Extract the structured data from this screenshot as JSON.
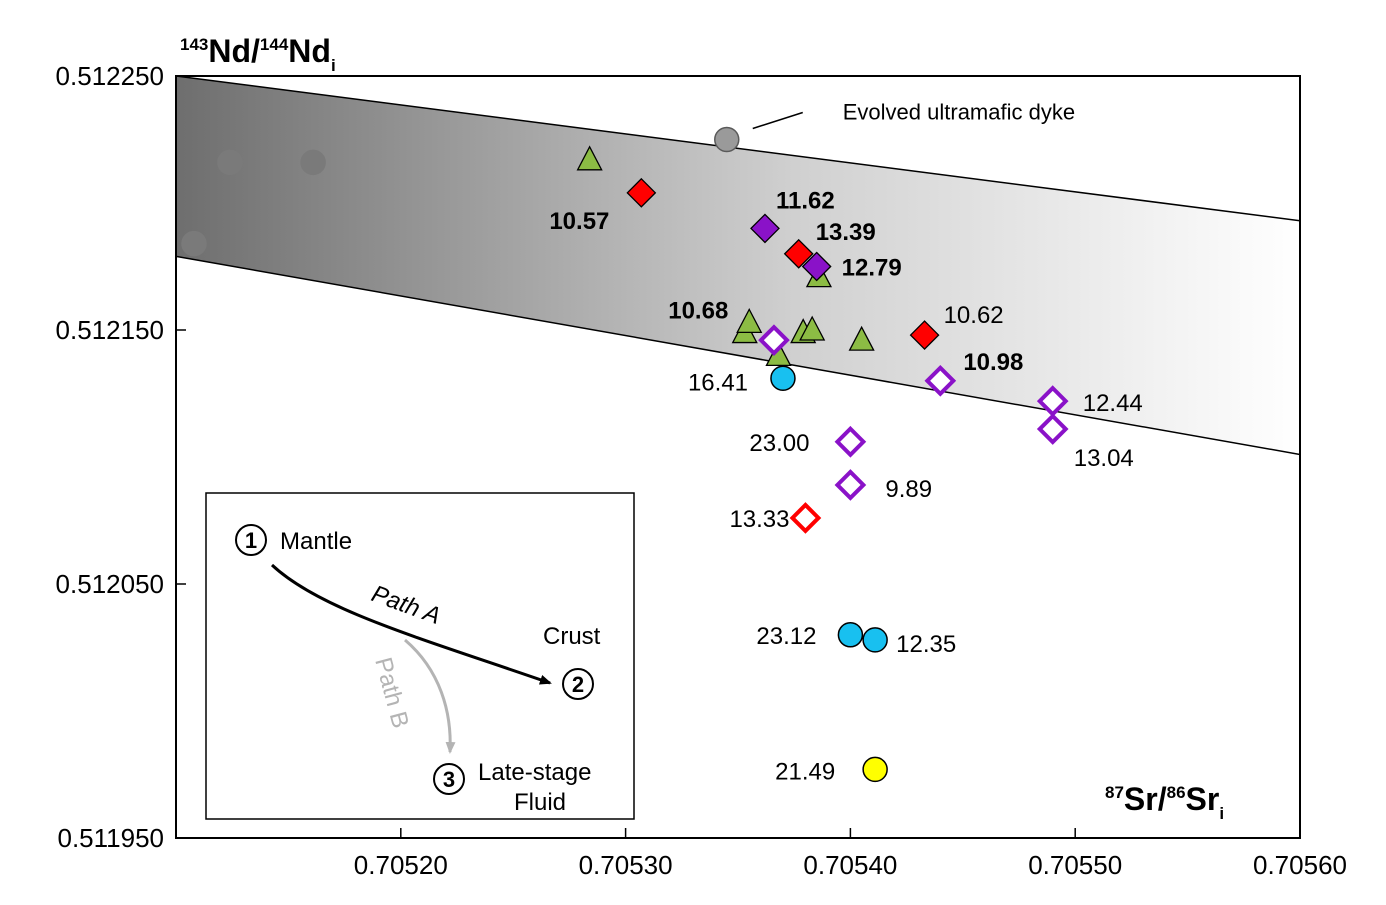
{
  "chart_data": {
    "type": "scatter",
    "y_axis_title": {
      "sup1": "143",
      "main1": "Nd/",
      "sup2": "144",
      "main2": "Nd",
      "sub": "i"
    },
    "x_axis_title": {
      "sup1": "87",
      "main1": "Sr/",
      "sup2": "86",
      "main2": "Sr",
      "sub": "i"
    },
    "xlim": [
      0.7051,
      0.7056
    ],
    "ylim": [
      0.51195,
      0.51225
    ],
    "x_ticks": [
      "0.70520",
      "0.70530",
      "0.70540",
      "0.70550",
      "0.70560"
    ],
    "y_ticks": [
      "0.511950",
      "0.512050",
      "0.512150",
      "0.512250"
    ],
    "grid": false,
    "band": {
      "upper": [
        [
          0.7051,
          0.51225
        ],
        [
          0.7056,
          0.512193
        ]
      ],
      "lower": [
        [
          0.7051,
          0.512179
        ],
        [
          0.7056,
          0.512101
        ]
      ],
      "colors": [
        "#6e6e6e",
        "#ffffff"
      ]
    },
    "series": [
      {
        "marker": "circle",
        "fill": "#7a7a7a",
        "stroke": "#7a7a7a",
        "points": [
          {
            "x": 0.705108,
            "y": 0.512184,
            "label": ""
          },
          {
            "x": 0.705124,
            "y": 0.512216,
            "label": ""
          },
          {
            "x": 0.705161,
            "y": 0.512216,
            "label": ""
          }
        ]
      },
      {
        "marker": "circle",
        "fill": "#9a9a9a",
        "stroke": "#5a5a5a",
        "points": [
          {
            "x": 0.705345,
            "y": 0.512225,
            "label": ""
          }
        ]
      },
      {
        "marker": "triangle",
        "fill": "#8cbc44",
        "stroke": "#000000",
        "points": [
          {
            "x": 0.705284,
            "y": 0.512217,
            "label": ""
          },
          {
            "x": 0.705353,
            "y": 0.512149,
            "label": ""
          },
          {
            "x": 0.705355,
            "y": 0.512153,
            "label": "10.68"
          },
          {
            "x": 0.705368,
            "y": 0.51214,
            "label": ""
          },
          {
            "x": 0.705379,
            "y": 0.512149,
            "label": ""
          },
          {
            "x": 0.705383,
            "y": 0.51215,
            "label": ""
          },
          {
            "x": 0.705386,
            "y": 0.512171,
            "label": ""
          },
          {
            "x": 0.705405,
            "y": 0.512146,
            "label": ""
          }
        ]
      },
      {
        "marker": "diamond",
        "fill": "#ff0000",
        "stroke": "#000000",
        "points": [
          {
            "x": 0.705307,
            "y": 0.512204,
            "label": "10.57"
          },
          {
            "x": 0.705377,
            "y": 0.51218,
            "label": "13.39"
          },
          {
            "x": 0.705433,
            "y": 0.512148,
            "label": "10.62"
          }
        ]
      },
      {
        "marker": "diamond",
        "fill": "#8a12c8",
        "stroke": "#000000",
        "points": [
          {
            "x": 0.705362,
            "y": 0.51219,
            "label": "11.62"
          },
          {
            "x": 0.705385,
            "y": 0.512175,
            "label": "12.79"
          }
        ]
      },
      {
        "marker": "diamond-open",
        "fill": "#ffffff",
        "stroke": "#8a12c8",
        "points": [
          {
            "x": 0.705366,
            "y": 0.512146,
            "label": ""
          },
          {
            "x": 0.70544,
            "y": 0.51213,
            "label": "10.98"
          },
          {
            "x": 0.70549,
            "y": 0.512122,
            "label": "12.44"
          },
          {
            "x": 0.70549,
            "y": 0.512111,
            "label": "13.04"
          },
          {
            "x": 0.7054,
            "y": 0.512106,
            "label": "23.00"
          },
          {
            "x": 0.7054,
            "y": 0.512089,
            "label": "9.89"
          }
        ]
      },
      {
        "marker": "diamond-open",
        "fill": "#ffffff",
        "stroke": "#ff0000",
        "points": [
          {
            "x": 0.70538,
            "y": 0.512076,
            "label": "13.33"
          }
        ]
      },
      {
        "marker": "circle",
        "fill": "#18c0f0",
        "stroke": "#000000",
        "points": [
          {
            "x": 0.70537,
            "y": 0.512131,
            "label": "16.41"
          },
          {
            "x": 0.7054,
            "y": 0.51203,
            "label": "23.12"
          },
          {
            "x": 0.705411,
            "y": 0.512028,
            "label": "12.35"
          }
        ]
      },
      {
        "marker": "circle",
        "fill": "#ffff00",
        "stroke": "#000000",
        "points": [
          {
            "x": 0.705411,
            "y": 0.511977,
            "label": "21.49"
          }
        ]
      }
    ],
    "annotation": {
      "text": "Evolved ultramafic dyke"
    },
    "inset": {
      "nodes": [
        {
          "num": "1",
          "label": "Mantle"
        },
        {
          "num": "2",
          "label": "Crust"
        },
        {
          "num": "3",
          "label_lines": [
            "Late-stage",
            "Fluid"
          ]
        }
      ],
      "paths": [
        {
          "label": "Path A",
          "color": "#000000"
        },
        {
          "label": "Path B",
          "color": "#b4b4b4"
        }
      ]
    }
  }
}
